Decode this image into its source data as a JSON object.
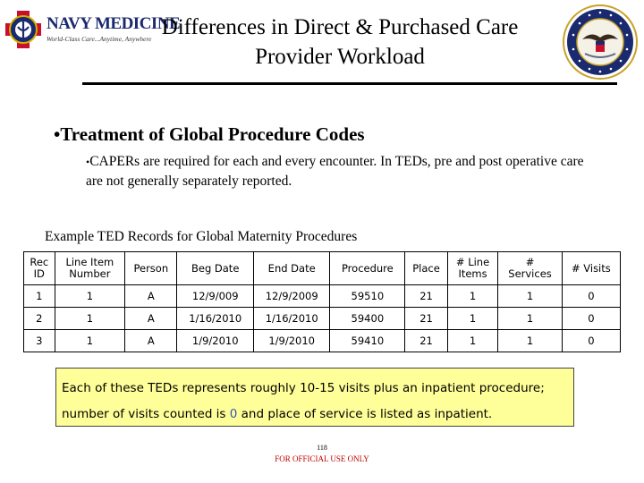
{
  "header": {
    "logo_text": "NAVY MEDICINE",
    "logo_tagline": "World-Class Care...Anytime, Anywhere",
    "title_line1": "Differences in Direct & Purchased Care",
    "title_line2": "Provider Workload",
    "seal_color": "#1a2a6e",
    "logo_cross_color": "#c8102e"
  },
  "bullets": {
    "main": "Treatment of Global Procedure Codes",
    "sub_marker": "•",
    "sub": "CAPERs are required for each and every encounter.  In TEDs, pre and post operative care are not generally separately reported."
  },
  "table": {
    "caption": "Example TED Records for Global Maternity Procedures",
    "headers": [
      [
        "Rec",
        "ID"
      ],
      [
        "Line Item",
        "Number"
      ],
      [
        "Person"
      ],
      [
        "Beg Date"
      ],
      [
        "End Date"
      ],
      [
        "Procedure"
      ],
      [
        "Place"
      ],
      [
        "# Line",
        "Items"
      ],
      [
        "#",
        "Services"
      ],
      [
        "# Visits"
      ]
    ],
    "rows": [
      [
        "1",
        "1",
        "A",
        "12/9/009",
        "12/9/2009",
        "59510",
        "21",
        "1",
        "1",
        "0"
      ],
      [
        "2",
        "1",
        "A",
        "1/16/2010",
        "1/16/2010",
        "59400",
        "21",
        "1",
        "1",
        "0"
      ],
      [
        "3",
        "1",
        "A",
        "1/9/2010",
        "1/9/2010",
        "59410",
        "21",
        "1",
        "1",
        "0"
      ]
    ]
  },
  "note": {
    "line1": "Each of these TEDs represents roughly 10-15 visits plus an inpatient procedure;",
    "line2_pre": "number of visits counted is ",
    "line2_value": "0",
    "line2_post": " and place of service is listed as inpatient.",
    "highlight_color": "#3355bb",
    "background_color": "#ffff99"
  },
  "footer": {
    "page_number": "118",
    "classification": "FOR OFFICIAL USE ONLY"
  }
}
